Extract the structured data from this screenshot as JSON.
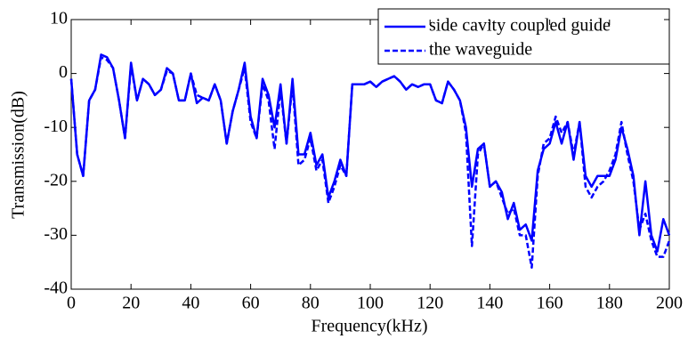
{
  "chart_data": {
    "type": "line",
    "xlabel": "Frequency(kHz)",
    "ylabel": "Transmission(dB)",
    "xlim": [
      0,
      200
    ],
    "ylim": [
      -40,
      10
    ],
    "xticks": [
      0,
      20,
      40,
      60,
      80,
      100,
      120,
      140,
      160,
      180,
      200
    ],
    "yticks": [
      -40,
      -30,
      -20,
      -10,
      0,
      10
    ],
    "legend": "upper right",
    "x": [
      0,
      2,
      4,
      6,
      8,
      10,
      12,
      14,
      16,
      18,
      20,
      22,
      24,
      26,
      28,
      30,
      32,
      34,
      36,
      38,
      40,
      42,
      44,
      46,
      48,
      50,
      52,
      54,
      56,
      58,
      60,
      62,
      64,
      66,
      68,
      70,
      72,
      74,
      76,
      78,
      80,
      82,
      84,
      86,
      88,
      90,
      92,
      94,
      96,
      98,
      100,
      102,
      104,
      106,
      108,
      110,
      112,
      114,
      116,
      118,
      120,
      122,
      124,
      126,
      128,
      130,
      132,
      134,
      136,
      138,
      140,
      142,
      144,
      146,
      148,
      150,
      152,
      154,
      156,
      158,
      160,
      162,
      164,
      166,
      168,
      170,
      172,
      174,
      176,
      178,
      180,
      182,
      184,
      186,
      188,
      190,
      192,
      194,
      196,
      198,
      200
    ],
    "series": [
      {
        "name": "side cavity coupled guide",
        "color": "#0000ff",
        "dash": false,
        "values": [
          -1,
          -15,
          -19,
          -5,
          -3,
          3.5,
          3,
          1,
          -5,
          -12,
          2,
          -5,
          -1,
          -2,
          -4,
          -3,
          1,
          0,
          -5,
          -5,
          0,
          -5.5,
          -4.5,
          -5,
          -2,
          -5,
          -13,
          -7,
          -3,
          2,
          -8,
          -12,
          -1,
          -4,
          -10,
          -2,
          -13,
          -1,
          -15,
          -15,
          -11,
          -17,
          -15,
          -23,
          -20,
          -16,
          -19,
          -2,
          -2,
          -2,
          -1.5,
          -2.5,
          -1.5,
          -1,
          -0.5,
          -1.5,
          -3,
          -2,
          -2.5,
          -2,
          -2,
          -5,
          -5.5,
          -1.5,
          -3,
          -5,
          -10,
          -21,
          -14,
          -13,
          -21,
          -20,
          -22,
          -27,
          -24,
          -29,
          -28,
          -31,
          -18,
          -14,
          -13,
          -9,
          -13,
          -9,
          -16,
          -9,
          -19,
          -21,
          -19,
          -19,
          -19,
          -16,
          -10,
          -14,
          -19,
          -30,
          -20,
          -30,
          -33,
          -27,
          -30
        ]
      },
      {
        "name": "the waveguide",
        "color": "#0000ff",
        "dash": true,
        "values": [
          -1,
          -15,
          -19,
          -5,
          -3,
          3,
          2.5,
          1,
          -5,
          -12,
          1.5,
          -5,
          -1,
          -2,
          -4,
          -3,
          0.5,
          0,
          -5,
          -5,
          0,
          -4,
          -4.5,
          -5,
          -2,
          -5,
          -13,
          -7,
          -3,
          1,
          -9,
          -12,
          -2,
          -5,
          -14,
          -3,
          -13,
          -2,
          -17,
          -16,
          -12,
          -18,
          -16,
          -24,
          -21,
          -17,
          -19,
          -2,
          -2,
          -2,
          -1.5,
          -2.5,
          -1.5,
          -1,
          -0.5,
          -1.5,
          -3,
          -2,
          -2.5,
          -2,
          -2,
          -5,
          -5.5,
          -1.5,
          -3,
          -5,
          -11,
          -32,
          -15,
          -13,
          -21,
          -20,
          -23,
          -26,
          -25,
          -30,
          -30,
          -36,
          -19,
          -13,
          -12,
          -8,
          -11,
          -9,
          -15,
          -9,
          -21,
          -23,
          -21,
          -20,
          -18,
          -15,
          -9,
          -15,
          -20,
          -29,
          -26,
          -31,
          -34,
          -34,
          -31
        ]
      }
    ]
  }
}
